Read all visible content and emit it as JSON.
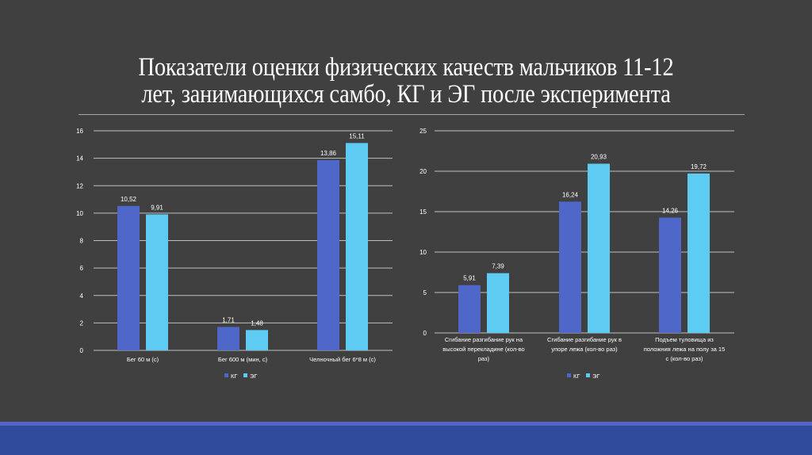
{
  "slide": {
    "title_line1": "Показатели оценки физических качеств мальчиков 11-12",
    "title_line2": "лет, занимающихся самбо, КГ и ЭГ после эксперимента",
    "background": "#404040",
    "footer_color": "#2f4a9b",
    "footer_stripe_color": "#5465c8"
  },
  "colors": {
    "series_kg": "#4e67c8",
    "series_eg": "#5ecbf2",
    "gridline": "#bfbfbf",
    "text": "#ffffff"
  },
  "chart_data": [
    {
      "type": "bar",
      "title": "",
      "xlabel": "",
      "ylabel": "",
      "categories": [
        "Бег 60 м (с)",
        "Бег 600 м (мин, с)",
        "Челночный бег 6*8 м (с)"
      ],
      "series": [
        {
          "name": "КГ",
          "values": [
            10.52,
            1.71,
            13.86
          ]
        },
        {
          "name": "ЭГ",
          "values": [
            9.91,
            1.48,
            15.11
          ]
        }
      ],
      "data_labels": {
        "КГ": [
          "10,52",
          "1,71",
          "13,86"
        ],
        "ЭГ": [
          "9,91",
          "1,48",
          "15,11"
        ]
      },
      "ylim": [
        0,
        16
      ],
      "yticks": [
        "0",
        "2",
        "4",
        "6",
        "8",
        "10",
        "12",
        "14",
        "16"
      ],
      "grid": true,
      "legend_position": "bottom",
      "legend": [
        "КГ",
        "ЭГ"
      ]
    },
    {
      "type": "bar",
      "title": "",
      "xlabel": "",
      "ylabel": "",
      "categories": [
        [
          "Сгибание разгибание рук на",
          "высокой перекладине (кол-во",
          "раз)"
        ],
        [
          "Сгибание разгибание рук в",
          "упоре лежа (кол-во раз)"
        ],
        [
          "Подъем туловища из",
          "положния лежа на полу за 15",
          "с (кол-во раз)"
        ]
      ],
      "series": [
        {
          "name": "КГ",
          "values": [
            5.91,
            16.24,
            14.26
          ]
        },
        {
          "name": "ЭГ",
          "values": [
            7.39,
            20.93,
            19.72
          ]
        }
      ],
      "data_labels": {
        "КГ": [
          "5,91",
          "16,24",
          "14,26"
        ],
        "ЭГ": [
          "7,39",
          "20,93",
          "19,72"
        ]
      },
      "ylim": [
        0,
        25
      ],
      "yticks": [
        "0",
        "5",
        "10",
        "15",
        "20",
        "25"
      ],
      "grid": true,
      "legend_position": "bottom",
      "legend": [
        "КГ",
        "ЭГ"
      ]
    }
  ]
}
